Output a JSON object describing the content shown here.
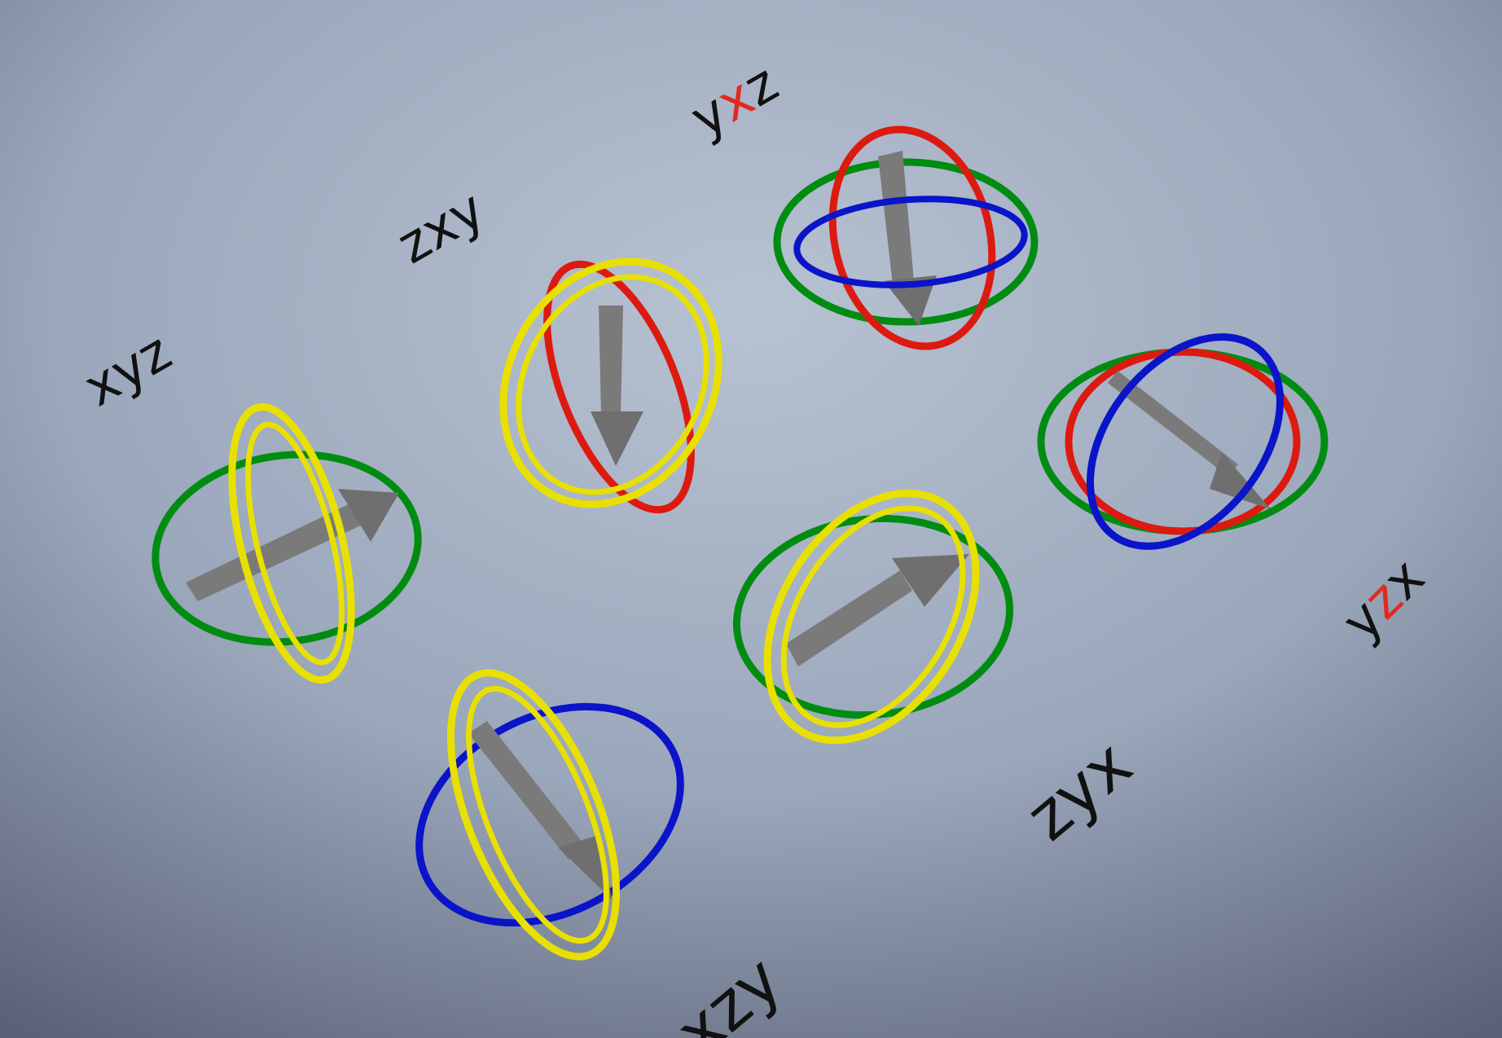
{
  "colors": {
    "bg_top": "#aab7c9",
    "bg_mid": "#9ca8bc",
    "bg_bottom": "#5c6378",
    "label_text": "#111111",
    "label_highlight": "#e02a20",
    "ring_x": "#e8e000",
    "ring_y": "#008c10",
    "ring_z": "#0a14c8",
    "ring_red": "#dd1a10",
    "arrow": "#7a7a7a"
  },
  "labels": {
    "xyz": {
      "pre": "xyz",
      "hi": "",
      "post": ""
    },
    "zxy": {
      "pre": "zxy",
      "hi": "",
      "post": ""
    },
    "yxz": {
      "pre": "y",
      "hi": "x",
      "post": "z"
    },
    "yzx": {
      "pre": "y",
      "hi": "z",
      "post": "x"
    },
    "zyx": {
      "pre": "zyx",
      "hi": "",
      "post": ""
    },
    "xzy": {
      "pre": "xzy",
      "hi": "",
      "post": ""
    }
  },
  "gimbals": [
    {
      "name": "xyz",
      "rings": [
        "green",
        "yellow-double"
      ],
      "arrow": "right-up"
    },
    {
      "name": "zxy",
      "rings": [
        "red",
        "yellow-double"
      ],
      "arrow": "down"
    },
    {
      "name": "yxz",
      "rings": [
        "green",
        "red",
        "blue"
      ],
      "arrow": "down"
    },
    {
      "name": "yzx",
      "rings": [
        "green",
        "red",
        "blue"
      ],
      "arrow": "down-right"
    },
    {
      "name": "zyx",
      "rings": [
        "green",
        "yellow-double"
      ],
      "arrow": "right-up"
    },
    {
      "name": "xzy",
      "rings": [
        "blue",
        "yellow-double"
      ],
      "arrow": "down-right"
    }
  ]
}
